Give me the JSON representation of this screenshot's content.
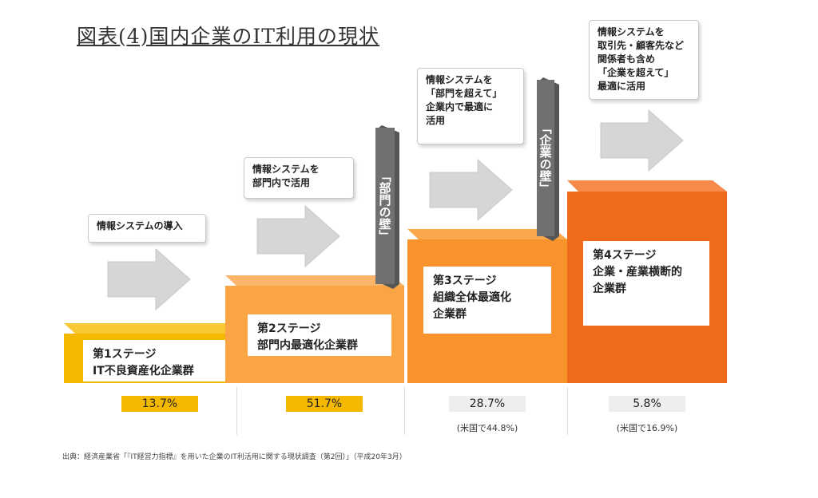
{
  "title": "図表(4)国内企業のIT利用の現状",
  "notes": [
    "情報システムの導入",
    "情報システムを\n部門内で活用",
    "情報システムを\n「部門を超えて」\n企業内で最適に\n活用",
    "情報システムを\n取引先・顧客先など\n関係者も含め\n「企業を超えて」\n最適に活用"
  ],
  "walls": [
    "「部門の壁」",
    "「企業の壁」"
  ],
  "stages": [
    {
      "label": "第1ステージ\nIT不良資産化企業群",
      "percent": "13.7%",
      "sub": "",
      "color": "#f5b800"
    },
    {
      "label": "第2ステージ\n部門内最適化企業群",
      "percent": "51.7%",
      "sub": "",
      "color": "#f9a445"
    },
    {
      "label": "第3ステージ\n組織全体最適化\n企業群",
      "percent": "28.7%",
      "sub": "(米国で44.8%)",
      "color": "#f7932a"
    },
    {
      "label": "第4ステージ\n企業・産業横断的\n企業群",
      "percent": "5.8%",
      "sub": "(米国で16.9%)",
      "color": "#ef6a1a"
    }
  ],
  "source": "出典：経済産業省「『IT経営力指標』を用いた企業のIT利活用に関する現状調査（第2回）」（平成20年3月）"
}
